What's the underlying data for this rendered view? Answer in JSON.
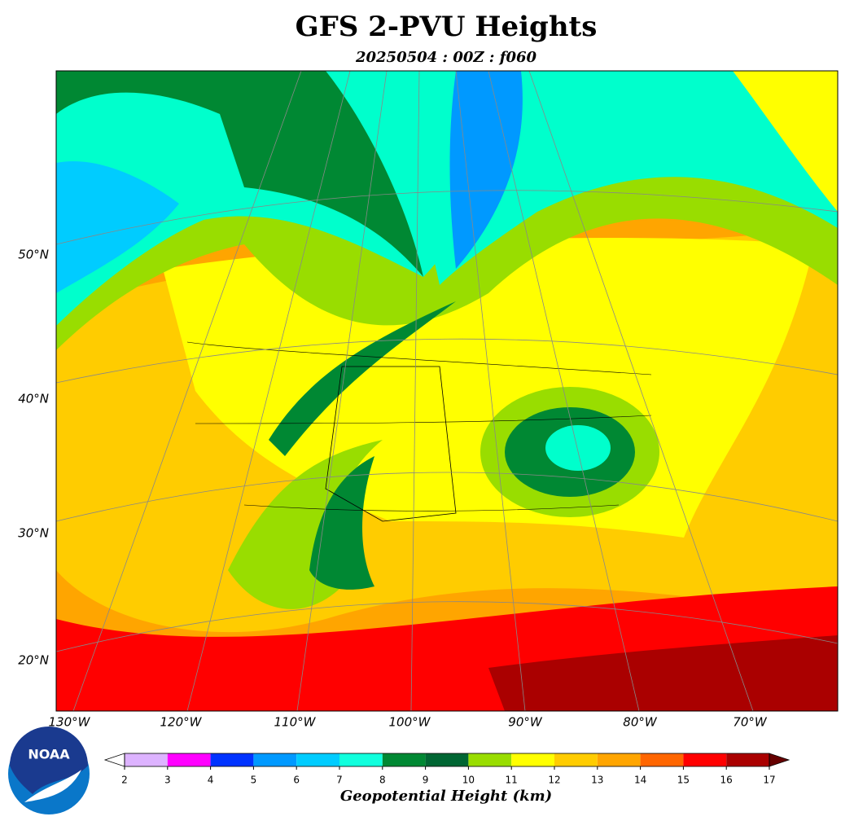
{
  "header": {
    "title": "GFS 2-PVU Heights",
    "subtitle": "20250504 : 00Z : f060"
  },
  "map": {
    "lat_labels": [
      "50°N",
      "40°N",
      "30°N",
      "20°N"
    ],
    "lon_labels": [
      "130°W",
      "120°W",
      "110°W",
      "100°W",
      "90°W",
      "80°W",
      "70°W"
    ]
  },
  "colorbar": {
    "ticks": [
      2,
      3,
      4,
      5,
      6,
      7,
      8,
      9,
      10,
      11,
      12,
      13,
      14,
      15,
      16,
      17
    ],
    "colors": [
      "#ddb3ff",
      "#ff00ff",
      "#0033ff",
      "#0099ff",
      "#00ccff",
      "#11ffdd",
      "#008833",
      "#006633",
      "#99dd00",
      "#ffff00",
      "#ffcc00",
      "#ffa500",
      "#ff6600",
      "#ff0000",
      "#aa0000"
    ],
    "under_color": "#ffffff",
    "over_color": "#660000",
    "label": "Geopotential Height (km)"
  },
  "logo": {
    "text": "NOAA"
  }
}
